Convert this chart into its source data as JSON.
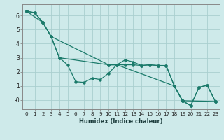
{
  "xlabel": "Humidex (Indice chaleur)",
  "bg_color": "#ceeaea",
  "grid_color": "#aacfcf",
  "line_color": "#1a7a6a",
  "spine_color": "#888888",
  "xlim": [
    -0.5,
    23.5
  ],
  "ylim": [
    -0.65,
    6.8
  ],
  "yticks": [
    0,
    1,
    2,
    3,
    4,
    5,
    6
  ],
  "ytick_labels": [
    "-0",
    "1",
    "2",
    "3",
    "4",
    "5",
    "6"
  ],
  "line1_x": [
    0,
    1,
    2,
    3,
    4,
    5,
    6,
    7,
    8,
    9,
    10,
    11,
    12,
    13,
    14,
    15,
    16,
    17,
    18,
    19,
    20,
    21,
    22,
    23
  ],
  "line1_y": [
    6.3,
    6.2,
    5.5,
    4.5,
    3.0,
    2.5,
    1.3,
    1.25,
    1.55,
    1.45,
    1.9,
    2.5,
    2.85,
    2.7,
    2.45,
    2.5,
    2.45,
    2.45,
    1.0,
    -0.05,
    -0.4,
    0.9,
    1.05,
    -0.1
  ],
  "line2_x": [
    0,
    1,
    2,
    3,
    4,
    10,
    11,
    12,
    13,
    14,
    15,
    16,
    17,
    18,
    19,
    20,
    21,
    22,
    23
  ],
  "line2_y": [
    6.3,
    6.2,
    5.5,
    4.5,
    3.0,
    2.5,
    2.5,
    2.5,
    2.5,
    2.45,
    2.5,
    2.45,
    2.45,
    1.0,
    -0.05,
    -0.4,
    0.9,
    1.05,
    -0.1
  ],
  "line3_x": [
    0,
    2,
    3,
    10,
    11,
    18,
    19,
    23
  ],
  "line3_y": [
    6.3,
    5.5,
    4.5,
    2.5,
    2.5,
    1.0,
    -0.05,
    -0.1
  ],
  "lw": 0.9,
  "ms": 2.2,
  "xlabel_fontsize": 6.0,
  "tick_fontsize": 5.2
}
